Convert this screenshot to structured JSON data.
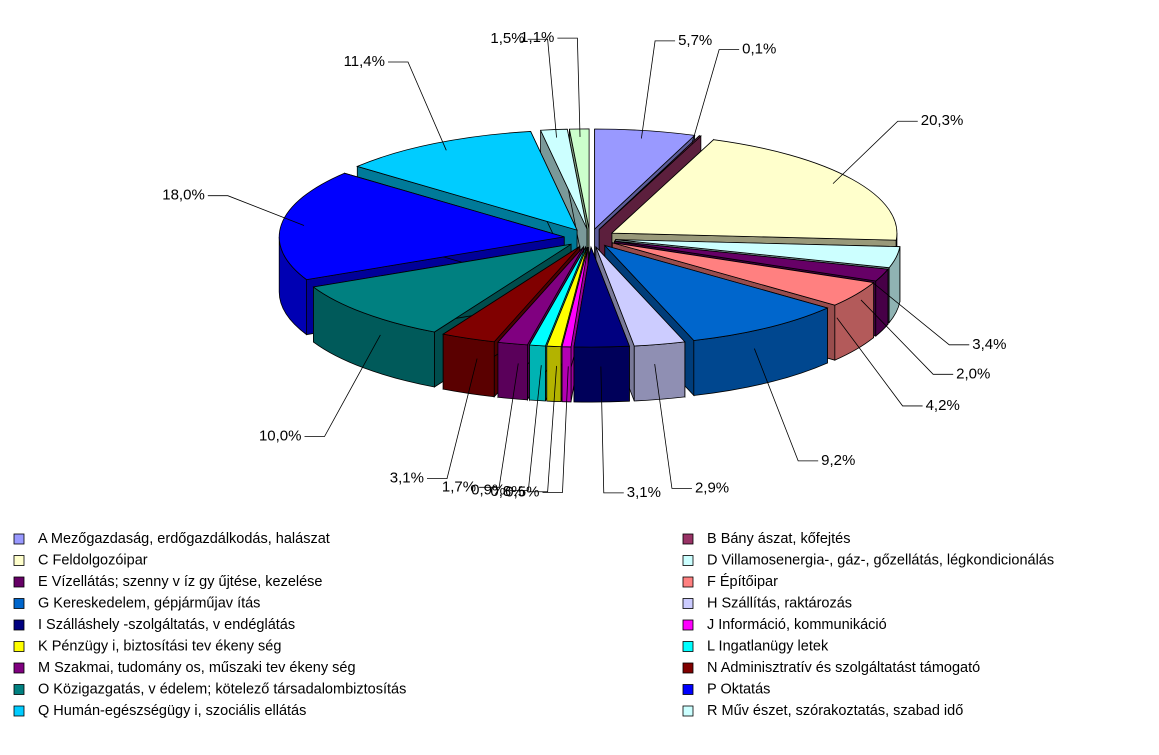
{
  "chart_data": {
    "type": "pie3d",
    "categories": [
      "A Mezőgazdaság, erdőgazdálkodás, halászat",
      "B Bány ászat, kőfejtés",
      "C Feldolgozóipar",
      "D Villamosenergia-, gáz-, gőzellátás, légkondicionálás",
      "E Vízellátás; szenny v íz gy űjtése, kezelése",
      "F Építőipar",
      "G Kereskedelem, gépjárműjav ítás",
      "H Szállítás, raktározás",
      "I Szálláshely -szolgáltatás, v endéglátás",
      "J Információ, kommunikáció",
      "K Pénzügy i, biztosítási tev ékeny ség",
      "L Ingatlanügy letek",
      "M Szakmai, tudomány os, műszaki tev ékeny ség",
      "N Adminisztratív és szolgáltatást támogató",
      "O Közigazgatás, v édelem; kötelező társadalombiztosítás",
      "P Oktatás",
      "Q Humán-egészségügy i, szociális ellátás",
      "R Műv észet, szórakoztatás, szabad idő",
      null
    ],
    "values": [
      5.7,
      0.1,
      20.3,
      3.4,
      2.0,
      4.2,
      9.2,
      2.9,
      3.1,
      0.5,
      0.8,
      0.9,
      1.7,
      3.1,
      10.0,
      18.0,
      11.4,
      1.5,
      1.1
    ],
    "value_labels": [
      "5,7%",
      "0,1%",
      "20,3%",
      "3,4%",
      "2,0%",
      "4,2%",
      "9,2%",
      "2,9%",
      "3,1%",
      "0,5%",
      "0,8%",
      "0,9%",
      "1,7%",
      "3,1%",
      "10,0%",
      "18,0%",
      "11,4%",
      "1,5%",
      "1,1%"
    ],
    "colors": [
      "#9999ff",
      "#993366",
      "#ffffcc",
      "#ccffff",
      "#660066",
      "#ff8080",
      "#0066cc",
      "#ccccff",
      "#000080",
      "#ff00ff",
      "#ffff00",
      "#00ffff",
      "#800080",
      "#800000",
      "#008080",
      "#0000ff",
      "#00ccff",
      "#ccffff",
      "#ccffcc"
    ]
  }
}
